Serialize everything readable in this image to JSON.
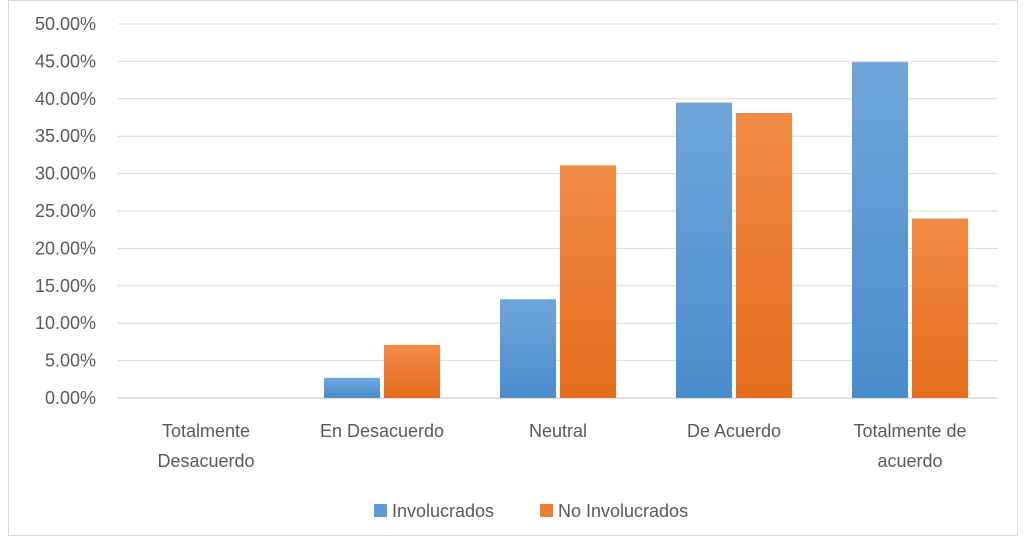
{
  "chart_data": {
    "type": "bar",
    "categories": [
      [
        "Totalmente",
        "Desacuerdo"
      ],
      [
        "En Desacuerdo"
      ],
      [
        "Neutral"
      ],
      [
        "De Acuerdo"
      ],
      [
        "Totalmente de",
        "acuerdo"
      ]
    ],
    "series": [
      {
        "name": "Involucrados",
        "color": "#5b9bd5",
        "values": [
          0.0,
          2.7,
          13.2,
          39.5,
          44.9
        ]
      },
      {
        "name": "No Involucrados",
        "color": "#ed7d31",
        "values": [
          0.0,
          7.1,
          31.1,
          38.1,
          24.0
        ]
      }
    ],
    "y_ticks": [
      "0.00%",
      "5.00%",
      "10.00%",
      "15.00%",
      "20.00%",
      "25.00%",
      "30.00%",
      "35.00%",
      "40.00%",
      "45.00%",
      "50.00%"
    ],
    "ylim": [
      0,
      50
    ],
    "grid": true,
    "legend_position": "bottom"
  }
}
